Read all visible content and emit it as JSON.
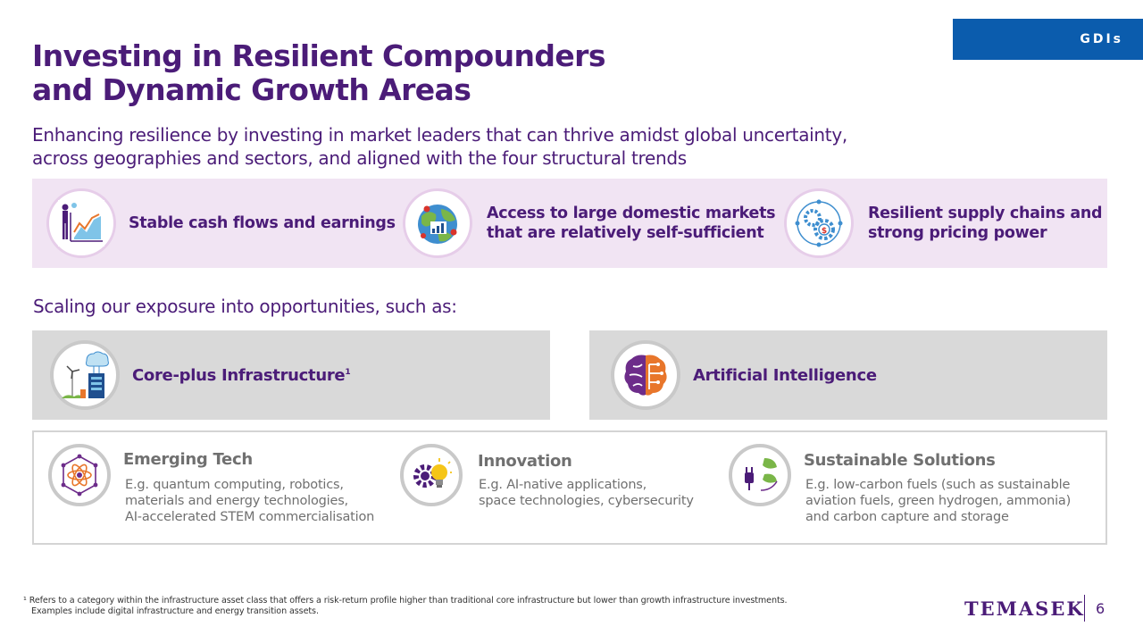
{
  "tag": "GDIs",
  "title": [
    "Investing in Resilient Compounders",
    "and Dynamic Growth Areas"
  ],
  "subtitle": [
    "Enhancing resilience by investing in market leaders that can thrive amidst global uncertainty,",
    "across geographies and sectors, and aligned with the four structural trends"
  ],
  "band": [
    {
      "icon": "stable-cashflow-icon",
      "lines": [
        "Stable cash flows and earnings"
      ]
    },
    {
      "icon": "domestic-market-globe-icon",
      "lines": [
        "Access to large domestic markets",
        "that are relatively self-sufficient"
      ]
    },
    {
      "icon": "supply-chain-gears-icon",
      "lines": [
        "Resilient supply chains and",
        "strong pricing power"
      ]
    }
  ],
  "scaling_text": "Scaling our exposure into opportunities, such as:",
  "opportunities": [
    {
      "icon": "infrastructure-icon",
      "label": "Core-plus Infrastructure",
      "superscript": "1"
    },
    {
      "icon": "ai-brain-icon",
      "label": "Artificial Intelligence"
    }
  ],
  "lower": [
    {
      "icon": "atom-icon",
      "title": "Emerging Tech",
      "desc": [
        "E.g. quantum computing, robotics,",
        "materials and energy technologies,",
        "AI-accelerated STEM commercialisation"
      ]
    },
    {
      "icon": "gear-lightbulb-icon",
      "title": "Innovation",
      "desc": [
        "E.g. AI-native applications,",
        "space technologies, cybersecurity"
      ]
    },
    {
      "icon": "green-plug-icon",
      "title": "Sustainable Solutions",
      "desc": [
        "E.g. low-carbon fuels (such as sustainable",
        "aviation fuels, green hydrogen, ammonia)",
        "and carbon capture and storage"
      ]
    }
  ],
  "footnote": [
    "¹ Refers to a category within the infrastructure asset class that offers a risk-return profile higher than traditional core infrastructure but lower than growth infrastructure investments.",
    "Examples include digital infrastructure and energy transition assets."
  ],
  "logo": "TEMASEK",
  "page_number": "6",
  "colors": {
    "title": "#4b1c78",
    "tag_bg": "#0b5cad",
    "band_bg": "#f1e4f3",
    "card_bg": "#d9d9d9",
    "grey_text": "#707070"
  }
}
